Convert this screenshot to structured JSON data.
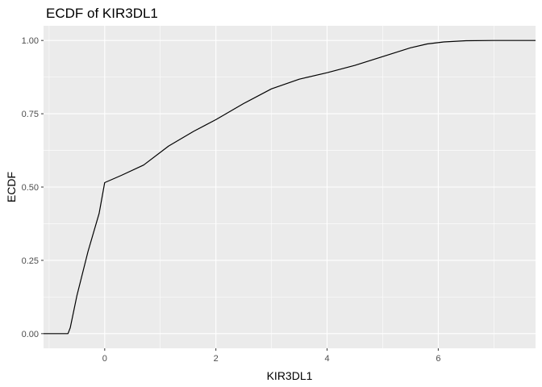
{
  "chart_data": {
    "type": "line",
    "title": "ECDF of KIR3DL1",
    "xlabel": "KIR3DL1",
    "ylabel": "ECDF",
    "xlim": [
      -1.1,
      7.75
    ],
    "ylim": [
      -0.05,
      1.05
    ],
    "x_ticks": [
      0,
      2,
      4,
      6
    ],
    "x_tick_labels": [
      "0",
      "2",
      "4",
      "6"
    ],
    "y_ticks": [
      0,
      0.25,
      0.5,
      0.75,
      1
    ],
    "y_tick_labels": [
      "0.00",
      "0.25",
      "0.50",
      "0.75",
      "1.00"
    ],
    "grid": true,
    "background_color": "#ebebeb",
    "grid_color": "#ffffff",
    "line_color": "#000000",
    "series": [
      {
        "x": [
          -1.1,
          -0.66,
          -0.62,
          -0.5,
          -0.3,
          -0.1,
          0.0,
          0.3,
          0.7,
          1.15,
          1.6,
          2.0,
          2.5,
          3.0,
          3.5,
          4.0,
          4.5,
          5.0,
          5.5,
          5.8,
          6.1,
          6.5,
          7.0,
          7.75
        ],
        "y": [
          0.0,
          0.0,
          0.02,
          0.13,
          0.28,
          0.41,
          0.515,
          0.54,
          0.575,
          0.64,
          0.69,
          0.73,
          0.785,
          0.835,
          0.868,
          0.89,
          0.915,
          0.945,
          0.975,
          0.988,
          0.995,
          0.999,
          1.0,
          1.0
        ]
      }
    ]
  }
}
